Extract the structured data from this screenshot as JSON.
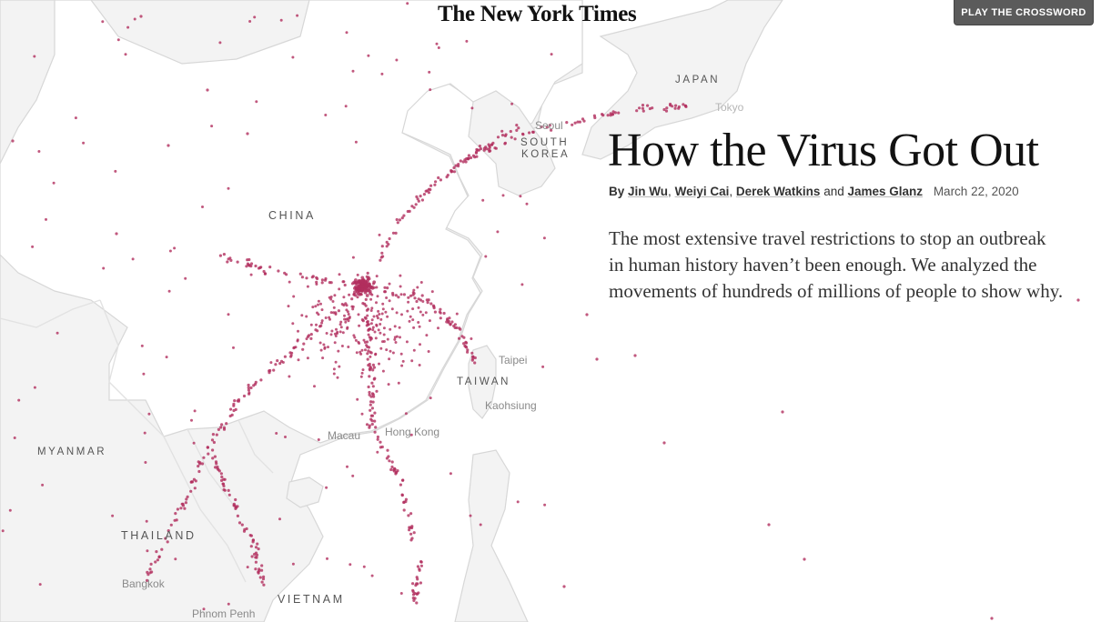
{
  "header": {
    "logo": "The New York Times",
    "crossword_button": "PLAY THE CROSSWORD"
  },
  "article": {
    "headline": "How the Virus Got Out",
    "byline": {
      "prefix": "By",
      "authors": [
        "Jin Wu",
        "Weiyi Cai",
        "Derek Watkins",
        "James Glanz"
      ],
      "separator": ",",
      "conjunction": "and",
      "date": "March 22, 2020"
    },
    "summary": "The most extensive travel restrictions to stop an outbreak in human history haven’t been enough. We analyzed the movements of hundreds of millions of people to show why."
  },
  "map": {
    "countries": {
      "china": "CHINA",
      "japan": "JAPAN",
      "south_korea_line1": "SOUTH",
      "south_korea_line2": "KOREA",
      "taiwan": "TAIWAN",
      "myanmar": "MYANMAR",
      "thailand": "THAILAND",
      "vietnam": "VIETNAM"
    },
    "cities": {
      "seoul": "Seoul",
      "tokyo": "Tokyo",
      "taipei": "Taipei",
      "kaohsiung": "Kaohsiung",
      "macau": "Macau",
      "hong_kong": "Hong Kong",
      "bangkok": "Bangkok",
      "phnom_penh": "Phnom Penh"
    },
    "colors": {
      "dot": "#b22e5e",
      "land": "#f3f3f3",
      "sea": "#ffffff"
    }
  }
}
